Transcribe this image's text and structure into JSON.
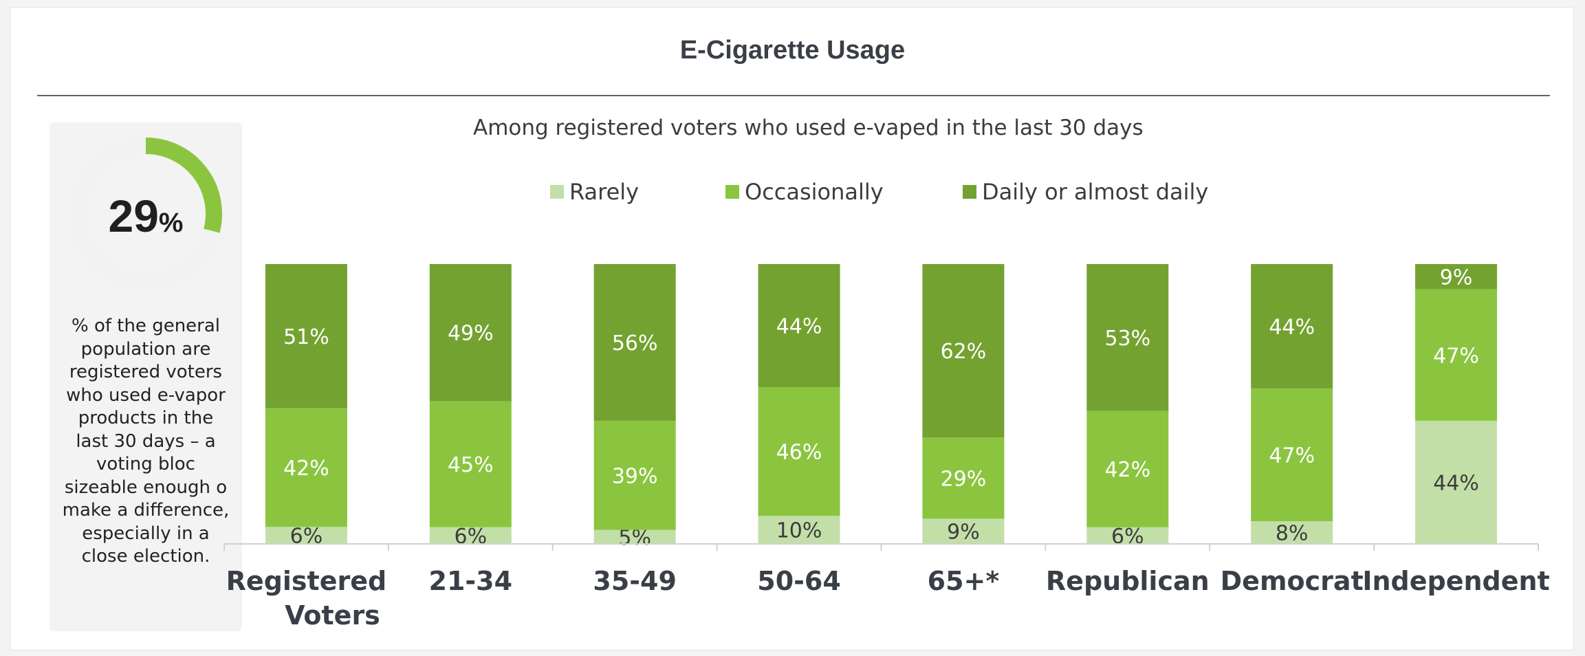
{
  "title": "E-Cigarette Usage",
  "highlight": {
    "number": "29",
    "unit": "%",
    "value": 29,
    "text": "% of the general\npopulation are\nregistered voters\nwho used e-vapor\nproducts in the\nlast 30 days – a\nvoting bloc\nsizeable enough o\nmake a difference,\nespecially in a\nclose election."
  },
  "colors": {
    "rarely": "#c3dfa8",
    "occasionally": "#8bc540",
    "daily": "#74a231",
    "donut_track": "#f2f2f2",
    "donut_fill": "#8bc540"
  },
  "chart_data": {
    "type": "bar",
    "stacked": true,
    "subtitle": "Among registered voters who used e-vaped in the last 30 days",
    "legend_position": "top",
    "ylim": [
      0,
      100
    ],
    "categories": [
      [
        "Registered",
        "Voters"
      ],
      [
        "21-34"
      ],
      [
        "35-49"
      ],
      [
        "50-64"
      ],
      [
        "65+*"
      ],
      [
        "Republican"
      ],
      [
        "Democrat"
      ],
      [
        "Independent"
      ]
    ],
    "series": [
      {
        "name": "Rarely",
        "key": "rarely",
        "values": [
          6,
          6,
          5,
          10,
          9,
          6,
          8,
          44
        ],
        "labels": [
          "6%",
          "6%",
          "5%",
          "10%",
          "9%",
          "6%",
          "8%",
          "44%"
        ]
      },
      {
        "name": "Occasionally",
        "key": "occasionally",
        "values": [
          42,
          45,
          39,
          46,
          29,
          42,
          47,
          47
        ],
        "labels": [
          "42%",
          "45%",
          "39%",
          "46%",
          "29%",
          "42%",
          "47%",
          "47%"
        ]
      },
      {
        "name": "Daily or almost daily",
        "key": "daily",
        "values": [
          51,
          49,
          56,
          44,
          62,
          53,
          44,
          9
        ],
        "labels": [
          "51%",
          "49%",
          "56%",
          "44%",
          "62%",
          "53%",
          "44%",
          "9%"
        ]
      }
    ]
  }
}
